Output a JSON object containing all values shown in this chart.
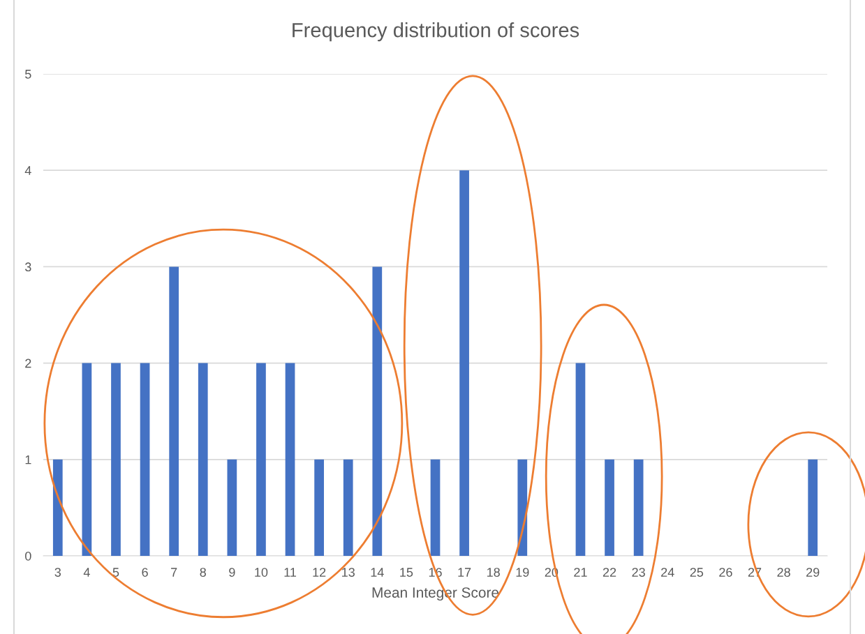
{
  "chart_data": {
    "type": "bar",
    "title": "Frequency distribution of scores",
    "xlabel": "Mean Integer Score",
    "categories": [
      "3",
      "4",
      "5",
      "6",
      "7",
      "8",
      "9",
      "10",
      "11",
      "12",
      "13",
      "14",
      "15",
      "16",
      "17",
      "18",
      "19",
      "20",
      "21",
      "22",
      "23",
      "24",
      "25",
      "26",
      "27",
      "28",
      "29"
    ],
    "values": [
      1,
      2,
      2,
      2,
      3,
      2,
      1,
      2,
      2,
      1,
      1,
      3,
      0,
      1,
      4,
      0,
      1,
      0,
      2,
      1,
      1,
      0,
      0,
      0,
      0,
      0,
      1
    ],
    "color": "#4472c4",
    "ylim": [
      0,
      5
    ],
    "yticks": [
      0,
      1,
      2,
      3,
      4,
      5
    ],
    "grid": "y",
    "legend": false
  }
}
